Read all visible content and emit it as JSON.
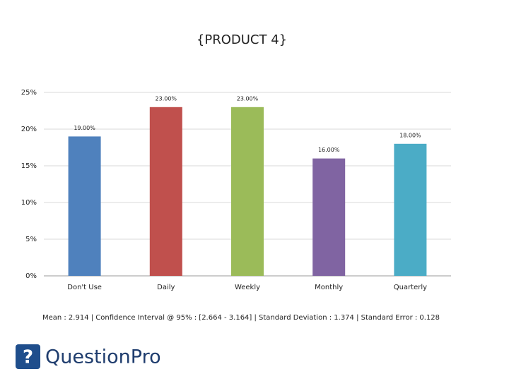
{
  "chart_data": {
    "type": "bar",
    "title": "{PRODUCT 4}",
    "categories": [
      "Don't Use",
      "Daily",
      "Weekly",
      "Monthly",
      "Quarterly"
    ],
    "values": [
      19,
      23,
      23,
      16,
      18
    ],
    "value_labels": [
      "19.00%",
      "23.00%",
      "23.00%",
      "16.00%",
      "18.00%"
    ],
    "colors": [
      "#4f81bd",
      "#c0504d",
      "#9bbb59",
      "#8064a2",
      "#4bacc6"
    ],
    "ylim": [
      0,
      25
    ],
    "yticks": [
      {
        "value": 0,
        "label": "0%"
      },
      {
        "value": 5,
        "label": "5%"
      },
      {
        "value": 10,
        "label": "10%"
      },
      {
        "value": 15,
        "label": "15%"
      },
      {
        "value": 20,
        "label": "20%"
      },
      {
        "value": 25,
        "label": "25%"
      }
    ],
    "grid": true,
    "stats": "Mean : 2.914  |  Confidence Interval @ 95% : [2.664 - 3.164]  |  Standard Deviation : 1.374  |  Standard Error : 0.128"
  },
  "logo": "QuestionPro"
}
